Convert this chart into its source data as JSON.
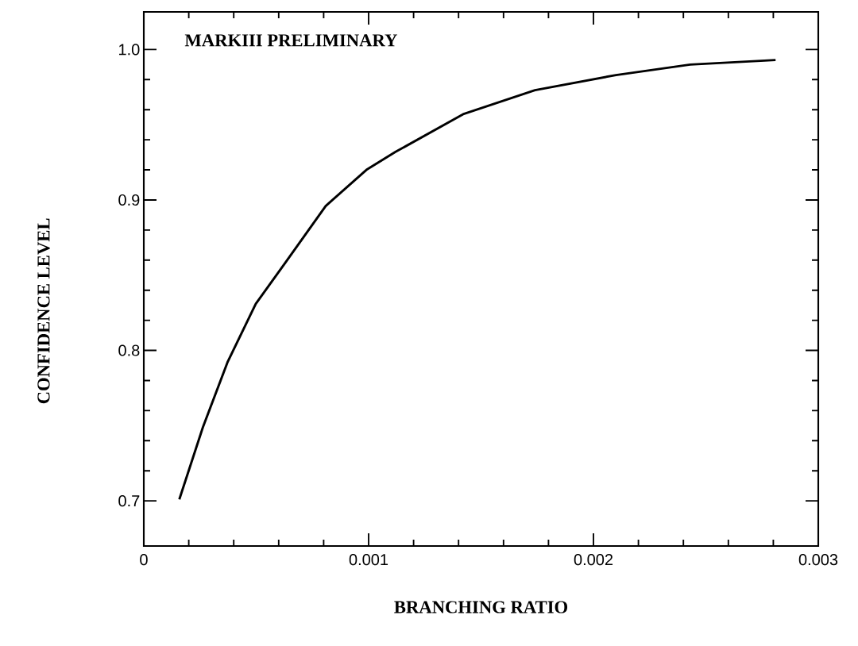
{
  "chart_data": {
    "type": "line",
    "xlabel": "BRANCHING RATIO",
    "ylabel": "CONFIDENCE LEVEL",
    "annotations": [
      "MARKIII PRELIMINARY"
    ],
    "color": "#000000",
    "x": [
      0.000158,
      0.000263,
      0.000372,
      0.000498,
      0.000628,
      0.000809,
      0.00099,
      0.00112,
      0.00142,
      0.00174,
      0.0021,
      0.00243,
      0.00281
    ],
    "values": [
      0.701,
      0.749,
      0.792,
      0.831,
      0.858,
      0.896,
      0.92,
      0.932,
      0.957,
      0.973,
      0.983,
      0.99,
      0.993
    ],
    "xlim": [
      0,
      0.003
    ],
    "ylim": [
      0.67,
      1.025
    ],
    "xticks": [
      0,
      0.001,
      0.002,
      0.003
    ],
    "yticks": [
      0.7,
      0.8,
      0.9,
      {
        "value": 1.0,
        "label": "1.0"
      }
    ]
  }
}
